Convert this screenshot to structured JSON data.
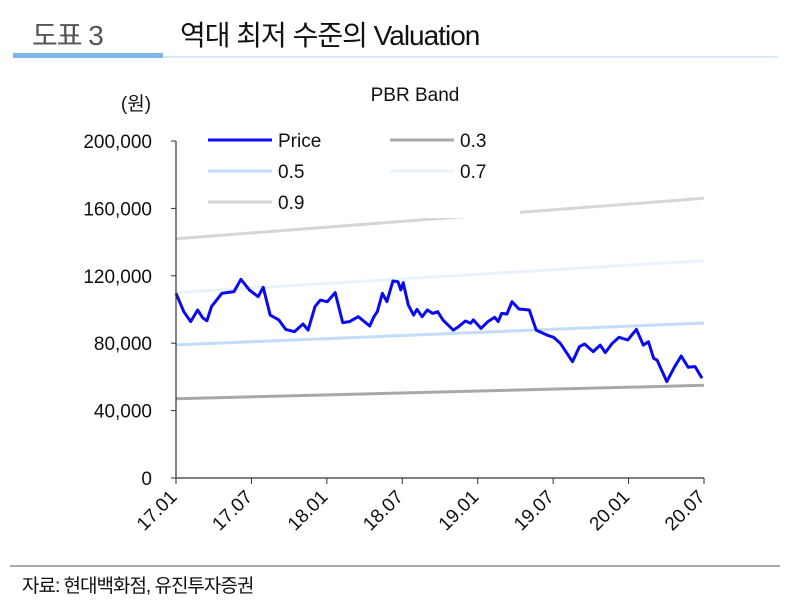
{
  "header": {
    "figure_number": "도표 3",
    "title": "역대 최저 수준의 Valuation"
  },
  "footer": {
    "source": "자료: 현대백화점, 유진투자증권"
  },
  "colors": {
    "price": "#0a0aee",
    "band_0_3": "#a9a9a9",
    "band_0_5": "#c3dcf7",
    "band_0_7": "#eaf3fd",
    "band_0_9": "#d6d6d6",
    "accent": "#7fb6ec"
  },
  "chart_data": {
    "type": "line",
    "title": "PBR Band",
    "ylabel": "(원)",
    "xlabel": "",
    "ylim": [
      0,
      200000
    ],
    "yticks": [
      0,
      40000,
      80000,
      120000,
      160000,
      200000
    ],
    "ytick_labels": [
      "0",
      "40,000",
      "80,000",
      "120,000",
      "160,000",
      "200,000"
    ],
    "x_unit": "months since 17.01",
    "xlim": [
      0,
      42
    ],
    "xticks": [
      0,
      6,
      12,
      18,
      24,
      30,
      36,
      42
    ],
    "xtick_labels": [
      "17.01",
      "17.07",
      "18.01",
      "18.07",
      "19.01",
      "19.07",
      "20.01",
      "20.07"
    ],
    "legend": {
      "placement": "top-left",
      "columns": 2
    },
    "series": [
      {
        "name": "Price",
        "color_key": "price",
        "points": [
          [
            0,
            109600
          ],
          [
            0.62,
            98700
          ],
          [
            1.17,
            92800
          ],
          [
            1.72,
            99700
          ],
          [
            2.13,
            95000
          ],
          [
            2.46,
            93300
          ],
          [
            2.82,
            101700
          ],
          [
            3.65,
            109600
          ],
          [
            4.61,
            110600
          ],
          [
            5.16,
            117900
          ],
          [
            5.84,
            111600
          ],
          [
            6.53,
            107600
          ],
          [
            6.94,
            113200
          ],
          [
            7.49,
            96700
          ],
          [
            8.18,
            93800
          ],
          [
            8.73,
            88200
          ],
          [
            9.42,
            86800
          ],
          [
            10.1,
            91400
          ],
          [
            10.51,
            87800
          ],
          [
            11.06,
            101700
          ],
          [
            11.48,
            105600
          ],
          [
            12.03,
            104600
          ],
          [
            12.66,
            110000
          ],
          [
            13.26,
            92200
          ],
          [
            13.81,
            92800
          ],
          [
            14.5,
            95700
          ],
          [
            15.41,
            90200
          ],
          [
            15.74,
            95700
          ],
          [
            16.01,
            98700
          ],
          [
            16.42,
            109600
          ],
          [
            16.78,
            104600
          ],
          [
            17.25,
            116900
          ],
          [
            17.66,
            116500
          ],
          [
            17.88,
            111600
          ],
          [
            18.07,
            115900
          ],
          [
            18.48,
            102700
          ],
          [
            18.9,
            96700
          ],
          [
            19.17,
            100100
          ],
          [
            19.58,
            95700
          ],
          [
            19.99,
            99700
          ],
          [
            20.41,
            97700
          ],
          [
            20.82,
            98700
          ],
          [
            21.23,
            93800
          ],
          [
            21.64,
            90800
          ],
          [
            22.06,
            87800
          ],
          [
            22.47,
            89800
          ],
          [
            23.02,
            93200
          ],
          [
            23.43,
            91800
          ],
          [
            23.65,
            93800
          ],
          [
            24.26,
            88800
          ],
          [
            24.81,
            92800
          ],
          [
            25.35,
            95400
          ],
          [
            25.63,
            92800
          ],
          [
            25.9,
            97700
          ],
          [
            26.32,
            97300
          ],
          [
            26.73,
            104600
          ],
          [
            27.28,
            100300
          ],
          [
            28.1,
            99700
          ],
          [
            28.65,
            87800
          ],
          [
            29.48,
            84900
          ],
          [
            30.03,
            83500
          ],
          [
            30.58,
            79900
          ],
          [
            31.54,
            69000
          ],
          [
            32.09,
            77900
          ],
          [
            32.5,
            79500
          ],
          [
            33.19,
            75000
          ],
          [
            33.74,
            78900
          ],
          [
            34.15,
            74400
          ],
          [
            34.7,
            79900
          ],
          [
            35.25,
            83500
          ],
          [
            35.93,
            81900
          ],
          [
            36.62,
            88200
          ],
          [
            37.17,
            78900
          ],
          [
            37.58,
            80900
          ],
          [
            38.0,
            71000
          ],
          [
            38.27,
            70000
          ],
          [
            39.04,
            57200
          ],
          [
            39.64,
            65700
          ],
          [
            40.19,
            72400
          ],
          [
            40.74,
            65700
          ],
          [
            41.29,
            66100
          ],
          [
            41.84,
            59200
          ]
        ]
      },
      {
        "name": "0.3",
        "color_key": "band_0_3",
        "points": [
          [
            0,
            47000
          ],
          [
            42,
            55000
          ]
        ]
      },
      {
        "name": "0.5",
        "color_key": "band_0_5",
        "points": [
          [
            0,
            79000
          ],
          [
            42,
            92000
          ]
        ]
      },
      {
        "name": "0.7",
        "color_key": "band_0_7",
        "points": [
          [
            0,
            110000
          ],
          [
            42,
            129000
          ]
        ]
      },
      {
        "name": "0.9",
        "color_key": "band_0_9",
        "points": [
          [
            0,
            142000
          ],
          [
            42,
            166000
          ]
        ]
      }
    ]
  }
}
